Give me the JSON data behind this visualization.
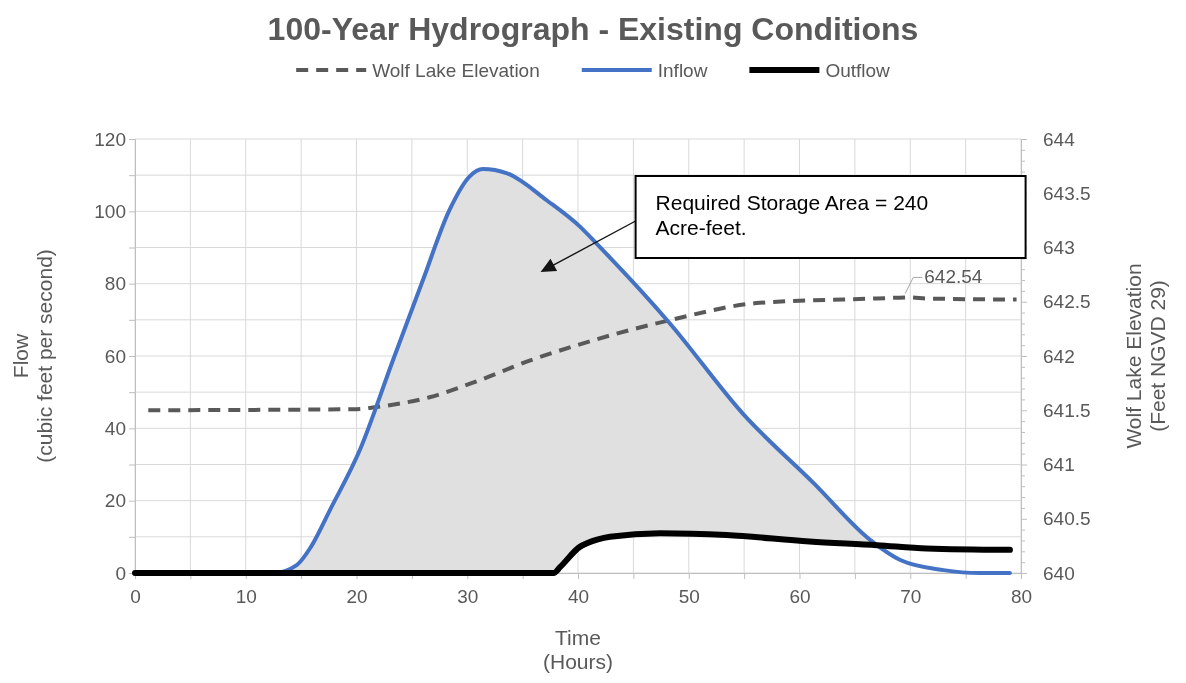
{
  "chart_data": {
    "type": "line",
    "title": "100-Year Hydrograph - Existing Conditions",
    "xlabel": "Time\n(Hours)",
    "ylabel": "Flow\n(cubic feet per second)",
    "y2label": "Wolf Lake Elevation\n(Feet NGVD 29)",
    "xlim": [
      0,
      80
    ],
    "xticks": [
      0,
      {
        "value": 5,
        "label": null
      },
      10,
      {
        "value": 15,
        "label": null
      },
      20,
      {
        "value": 25,
        "label": null
      },
      30,
      {
        "value": 35,
        "label": null
      },
      40,
      {
        "value": 45,
        "label": null
      },
      50,
      {
        "value": 55,
        "label": null
      },
      60,
      {
        "value": 65,
        "label": null
      },
      70,
      {
        "value": 75,
        "label": null
      },
      80
    ],
    "ylim": [
      0,
      120
    ],
    "yticks": [
      0,
      {
        "value": 10,
        "label": null
      },
      20,
      {
        "value": 30,
        "label": null
      },
      40,
      {
        "value": 50,
        "label": null
      },
      60,
      {
        "value": 70,
        "label": null
      },
      80,
      {
        "value": 90,
        "label": null
      },
      100,
      {
        "value": 110,
        "label": null
      },
      120
    ],
    "y2lim": [
      640,
      644
    ],
    "y2ticks": [
      640,
      {
        "value": 640.1,
        "label": null
      },
      {
        "value": 640.2,
        "label": null
      },
      {
        "value": 640.3,
        "label": null
      },
      {
        "value": 640.4,
        "label": null
      },
      640.5,
      {
        "value": 640.6,
        "label": null
      },
      {
        "value": 640.7,
        "label": null
      },
      {
        "value": 640.8,
        "label": null
      },
      {
        "value": 640.9,
        "label": null
      },
      641,
      {
        "value": 641.1,
        "label": null
      },
      {
        "value": 641.2,
        "label": null
      },
      {
        "value": 641.3,
        "label": null
      },
      {
        "value": 641.4,
        "label": null
      },
      641.5,
      {
        "value": 641.6,
        "label": null
      },
      {
        "value": 641.7,
        "label": null
      },
      {
        "value": 641.8,
        "label": null
      },
      {
        "value": 641.9,
        "label": null
      },
      642,
      {
        "value": 642.1,
        "label": null
      },
      {
        "value": 642.2,
        "label": null
      },
      {
        "value": 642.3,
        "label": null
      },
      {
        "value": 642.4,
        "label": null
      },
      642.5,
      {
        "value": 642.6,
        "label": null
      },
      {
        "value": 642.7,
        "label": null
      },
      {
        "value": 642.8,
        "label": null
      },
      {
        "value": 642.9,
        "label": null
      },
      643,
      {
        "value": 643.1,
        "label": null
      },
      {
        "value": 643.2,
        "label": null
      },
      {
        "value": 643.3,
        "label": null
      },
      {
        "value": 643.4,
        "label": null
      },
      643.5,
      {
        "value": 643.6,
        "label": null
      },
      {
        "value": 643.7,
        "label": null
      },
      {
        "value": 643.8,
        "label": null
      },
      {
        "value": 643.9,
        "label": null
      },
      644
    ],
    "grid": true,
    "legend": "top",
    "marker": "none",
    "annotations": [
      "Required Storage Area = 240 Acre-feet."
    ],
    "series": [
      {
        "name": "Wolf Lake Elevation",
        "color": "#595959",
        "axis": "y2",
        "line_style": "dashed",
        "x": [
          1.2,
          20,
          21.8,
          26.6,
          31.2,
          35.7,
          39.6,
          48.3,
          56.4,
          67,
          70,
          71.5,
          79.6
        ],
        "values": [
          641.5,
          641.51,
          641.53,
          641.62,
          641.78,
          641.96,
          642.09,
          642.33,
          642.49,
          642.53,
          642.54,
          642.53,
          642.52
        ],
        "value_labels": [
          null,
          null,
          null,
          null,
          null,
          null,
          null,
          null,
          null,
          null,
          "642.54",
          null,
          null
        ]
      },
      {
        "name": "Inflow",
        "color": "#4472c4",
        "x": [
          0,
          12.5,
          14.6,
          15.9,
          17.6,
          20.3,
          23.3,
          26,
          28.4,
          30.2,
          31.4,
          33.6,
          37.2,
          40.2,
          41.7,
          48.3,
          54.9,
          61.3,
          66.4,
          69.1,
          73,
          76.3,
          79
        ],
        "values": [
          0,
          0,
          2.2,
          7.3,
          17.4,
          34,
          58.9,
          81,
          100.4,
          109.6,
          111.7,
          110.5,
          103,
          95.7,
          91,
          69,
          44,
          24.8,
          9.1,
          3.6,
          0.8,
          0,
          0
        ],
        "upper": [
          null,
          0,
          2.2,
          7.3,
          17.4,
          34,
          58.9,
          81,
          100.4,
          109.6,
          111.7,
          110.5,
          103,
          95.7,
          91,
          69,
          44,
          24.8,
          9.1,
          null,
          null,
          null,
          null
        ],
        "lower": [
          null,
          0,
          0,
          0,
          0,
          0,
          0,
          0,
          0,
          0,
          0,
          0,
          0,
          7.3,
          9,
          11,
          10.3,
          8.6,
          7.8,
          null,
          null,
          null,
          null
        ]
      },
      {
        "name": "Outflow",
        "color": "#000000",
        "x": [
          0,
          35,
          37.8,
          38.4,
          40.2,
          40.8,
          42.9,
          47.4,
          53.4,
          60.9,
          67,
          71.5,
          79
        ],
        "values": [
          0,
          0,
          0,
          1.7,
          7.3,
          8.2,
          10,
          11,
          10.5,
          8.7,
          7.7,
          6.8,
          6.4
        ]
      }
    ]
  }
}
